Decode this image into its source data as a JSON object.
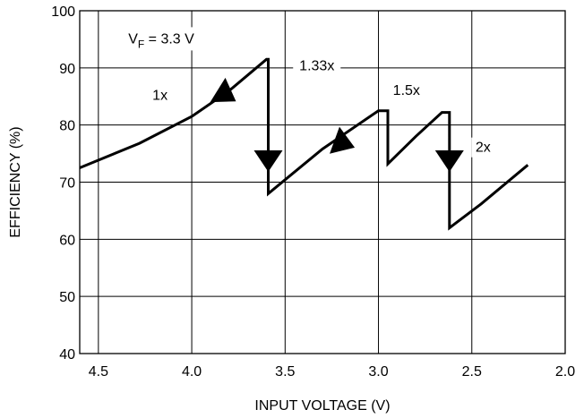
{
  "chart_data": {
    "type": "line",
    "title": "",
    "xlabel": "INPUT VOLTAGE (V)",
    "ylabel": "EFFICIENCY (%)",
    "xlim": [
      4.6,
      2.0
    ],
    "ylim": [
      40,
      100
    ],
    "x_reversed": true,
    "grid": true,
    "xticks": [
      4.5,
      4.0,
      3.5,
      3.0,
      2.5,
      2.0
    ],
    "xtick_labels": [
      "4.5",
      "4.0",
      "3.5",
      "3.0",
      "2.5",
      "2.0"
    ],
    "yticks": [
      40,
      50,
      60,
      70,
      80,
      90,
      100
    ],
    "ytick_labels": [
      "40",
      "50",
      "60",
      "70",
      "80",
      "90",
      "100"
    ],
    "series": [
      {
        "x": [
          4.6,
          4.28,
          4.0,
          3.8,
          3.6,
          3.59,
          3.59,
          3.3,
          3.0,
          2.95,
          2.95,
          2.8,
          2.66,
          2.62,
          2.62,
          2.45,
          2.2
        ],
        "y": [
          72.5,
          76.8,
          81.5,
          86.0,
          91.5,
          91.5,
          68.0,
          75.8,
          82.5,
          82.5,
          73.2,
          78.0,
          82.2,
          82.2,
          62.0,
          66.2,
          73.0
        ],
        "color": "#000000"
      }
    ],
    "arrows": [
      {
        "x": 3.82,
        "y": 85.3,
        "direction": "down-right"
      },
      {
        "x": 3.59,
        "y": 74.0,
        "direction": "down"
      },
      {
        "x": 3.19,
        "y": 76.8,
        "direction": "right"
      },
      {
        "x": 2.62,
        "y": 74.0,
        "direction": "down"
      }
    ],
    "annotations": [
      {
        "id": "vf",
        "text": "V",
        "sub": "F",
        "rest": " = 3.3 V",
        "x": 4.34,
        "y": 94.3
      },
      {
        "id": "mode-1x",
        "text": "1x",
        "x": 4.17,
        "y": 84.4
      },
      {
        "id": "mode-133x",
        "text": "1.33x",
        "x": 3.33,
        "y": 89.6
      },
      {
        "id": "mode-15x",
        "text": "1.5x",
        "x": 2.85,
        "y": 85.3
      },
      {
        "id": "mode-2x",
        "text": "2x",
        "x": 2.44,
        "y": 75.3
      }
    ]
  }
}
